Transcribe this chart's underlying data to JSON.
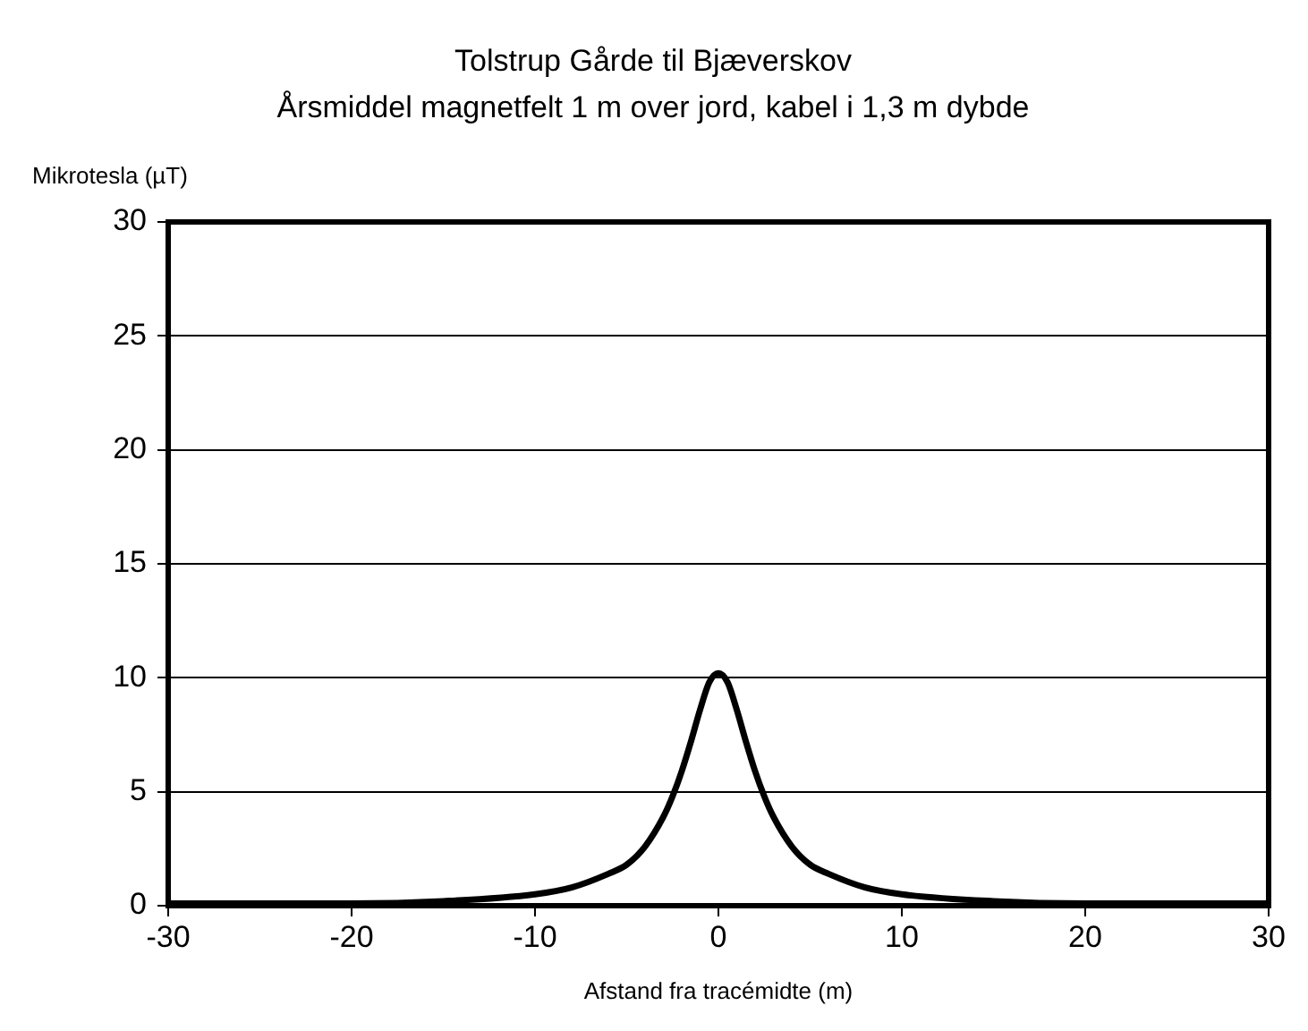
{
  "chart_data": {
    "type": "line",
    "title": "Tolstrup Gårde til Bjæverskov",
    "subtitle": "Årsmiddel magnetfelt 1 m over jord, kabel i 1,3 m dybde",
    "xlabel": "Afstand fra tracémidte (m)",
    "ylabel": "Mikrotesla (µT)",
    "x": [
      -30,
      -20,
      -15,
      -10,
      -8,
      -6,
      -5,
      -4,
      -3,
      -2.5,
      -2,
      -1.5,
      -1,
      -0.5,
      0,
      0.5,
      1,
      1.5,
      2,
      2.5,
      3,
      4,
      5,
      6,
      8,
      10,
      15,
      20,
      30
    ],
    "series": [
      {
        "color": "#000000",
        "values": [
          0.1,
          0.1,
          0.2,
          0.5,
          0.8,
          1.4,
          1.8,
          2.6,
          3.9,
          4.8,
          5.9,
          7.2,
          8.6,
          9.8,
          10.2,
          9.8,
          8.6,
          7.2,
          5.9,
          4.8,
          3.9,
          2.6,
          1.8,
          1.4,
          0.8,
          0.5,
          0.2,
          0.1,
          0.1
        ]
      }
    ],
    "xlim": [
      -30,
      30
    ],
    "xticks": [
      -30,
      -20,
      -10,
      0,
      10,
      20,
      30
    ],
    "ylim": [
      0,
      30
    ],
    "yticks": [
      0,
      5,
      10,
      15,
      20,
      25,
      30
    ],
    "grid": "y",
    "legend": false,
    "marker": "none",
    "line_style": "solid"
  }
}
